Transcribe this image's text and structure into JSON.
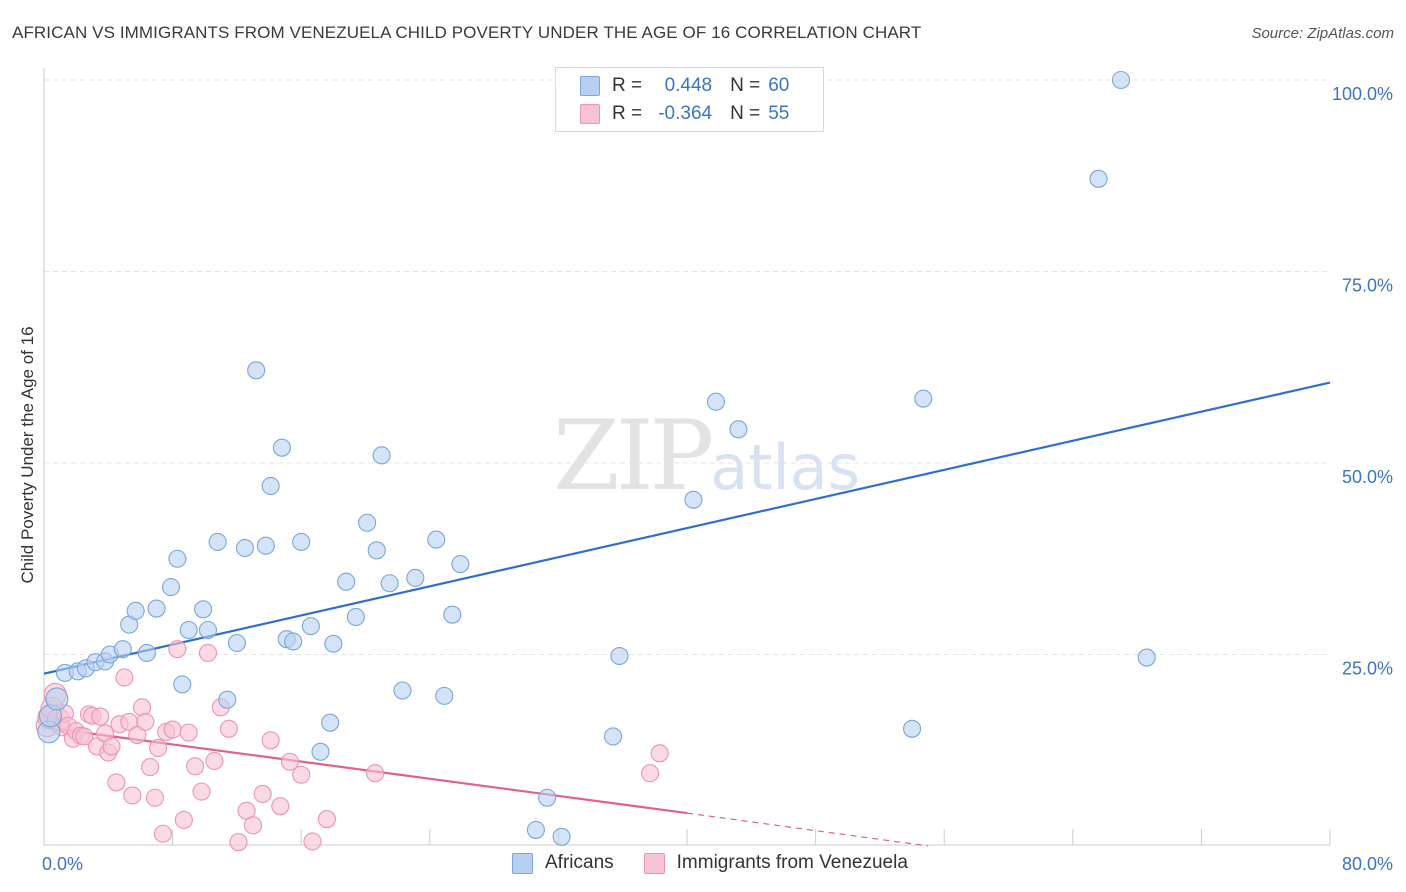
{
  "header": {
    "title": "AFRICAN VS IMMIGRANTS FROM VENEZUELA CHILD POVERTY UNDER THE AGE OF 16 CORRELATION CHART",
    "source": "Source: ZipAtlas.com"
  },
  "watermark": {
    "zip": "ZIP",
    "atlas": "atlas"
  },
  "legend": {
    "africans": {
      "r_label": "R =",
      "r_value": "0.448",
      "n_label": "N =",
      "n_value": "60"
    },
    "venezuela": {
      "r_label": "R =",
      "r_value": "-0.364",
      "n_label": "N =",
      "n_value": "55"
    }
  },
  "colors": {
    "africans_fill": "#b7d0ef",
    "africans_stroke": "#7aa6dc",
    "africans_line": "#2f6fcb",
    "venezuela_fill": "#f7c3d3",
    "venezuela_stroke": "#ee93b1",
    "venezuela_line": "#e0608f",
    "grid": "#e4e4e4",
    "axis_text": "#3b74c4"
  },
  "chart_data": {
    "type": "scatter",
    "title": "AFRICAN VS IMMIGRANTS FROM VENEZUELA CHILD POVERTY UNDER THE AGE OF 16 CORRELATION CHART",
    "xlabel": "",
    "ylabel": "Child Poverty Under the Age of 16",
    "xlim": [
      0,
      80
    ],
    "ylim": [
      0,
      100
    ],
    "x_tick_labels": [
      "0.0%",
      "80.0%"
    ],
    "y_ticks": [
      25,
      50,
      75,
      100
    ],
    "y_tick_labels": [
      "25.0%",
      "50.0%",
      "75.0%",
      "100.0%"
    ],
    "legend_position": "top-center",
    "series": [
      {
        "name": "Africans",
        "x": [
          0.3,
          0.4,
          0.8,
          1.3,
          2.1,
          2.6,
          3.2,
          3.8,
          4.1,
          4.9,
          5.3,
          5.7,
          6.4,
          7.0,
          7.9,
          8.3,
          8.6,
          9.0,
          9.9,
          10.2,
          10.8,
          11.4,
          12.0,
          12.5,
          13.2,
          13.8,
          14.1,
          14.8,
          15.1,
          15.5,
          16.0,
          16.6,
          17.2,
          17.8,
          18.0,
          18.8,
          19.4,
          20.1,
          20.7,
          21.0,
          21.5,
          22.3,
          23.1,
          24.4,
          24.9,
          25.4,
          25.9,
          30.6,
          31.3,
          32.2,
          35.4,
          35.8,
          40.4,
          41.8,
          43.2,
          54.0,
          54.7,
          65.6,
          67.0,
          68.6
        ],
        "y": [
          14.9,
          17.0,
          19.2,
          22.6,
          22.8,
          23.2,
          24.0,
          24.1,
          25.0,
          25.7,
          28.9,
          30.7,
          25.2,
          31.0,
          33.8,
          37.5,
          21.1,
          28.2,
          30.9,
          28.2,
          39.7,
          19.1,
          26.5,
          38.9,
          62.1,
          39.2,
          47.0,
          52.0,
          27.0,
          26.7,
          39.7,
          28.7,
          12.3,
          16.1,
          26.4,
          34.5,
          29.9,
          42.2,
          38.6,
          51.0,
          34.3,
          20.3,
          35.0,
          40.0,
          19.6,
          30.2,
          36.8,
          2.1,
          6.3,
          1.2,
          14.3,
          24.8,
          45.2,
          58.0,
          54.4,
          15.3,
          58.4,
          87.1,
          100.0,
          24.6
        ]
      },
      {
        "name": "Immigrants from Venezuela",
        "x": [
          0.2,
          0.3,
          0.5,
          0.7,
          0.9,
          1.1,
          1.3,
          1.5,
          1.8,
          2.0,
          2.3,
          2.5,
          2.8,
          3.0,
          3.3,
          3.5,
          3.8,
          4.0,
          4.2,
          4.5,
          4.7,
          5.0,
          5.3,
          5.5,
          5.8,
          6.1,
          6.3,
          6.6,
          6.9,
          7.1,
          7.4,
          7.6,
          8.0,
          8.3,
          8.7,
          9.0,
          9.4,
          9.8,
          10.2,
          10.6,
          11.0,
          11.5,
          12.1,
          12.6,
          13.0,
          13.6,
          14.1,
          14.7,
          15.3,
          16.0,
          16.7,
          17.6,
          20.6,
          37.7,
          38.3
        ],
        "y": [
          15.7,
          16.8,
          18.0,
          19.8,
          16.5,
          15.5,
          17.3,
          15.7,
          14.0,
          15.0,
          14.4,
          14.3,
          17.2,
          17.0,
          13.0,
          16.9,
          14.7,
          12.2,
          13.0,
          8.3,
          15.9,
          22.0,
          16.2,
          6.6,
          14.5,
          18.1,
          16.2,
          10.3,
          6.3,
          12.8,
          1.6,
          14.9,
          15.2,
          25.7,
          3.4,
          14.8,
          10.4,
          7.1,
          25.2,
          11.1,
          18.1,
          15.3,
          0.5,
          4.6,
          2.7,
          6.8,
          13.8,
          5.2,
          11.0,
          9.3,
          0.6,
          3.5,
          9.5,
          9.5,
          12.1
        ]
      }
    ],
    "trendlines": [
      {
        "series": "Africans",
        "x": [
          0,
          80
        ],
        "y": [
          22.5,
          60.5
        ],
        "style": "solid"
      },
      {
        "series": "Immigrants from Venezuela",
        "x": [
          0,
          40
        ],
        "y": [
          15.5,
          4.3
        ],
        "style": "solid"
      },
      {
        "series": "Immigrants from Venezuela",
        "x": [
          40,
          55
        ],
        "y": [
          4.3,
          0.0
        ],
        "style": "dashed"
      }
    ]
  },
  "bottom_legend": {
    "africans_label": "Africans",
    "venezuela_label": "Immigrants from Venezuela"
  }
}
